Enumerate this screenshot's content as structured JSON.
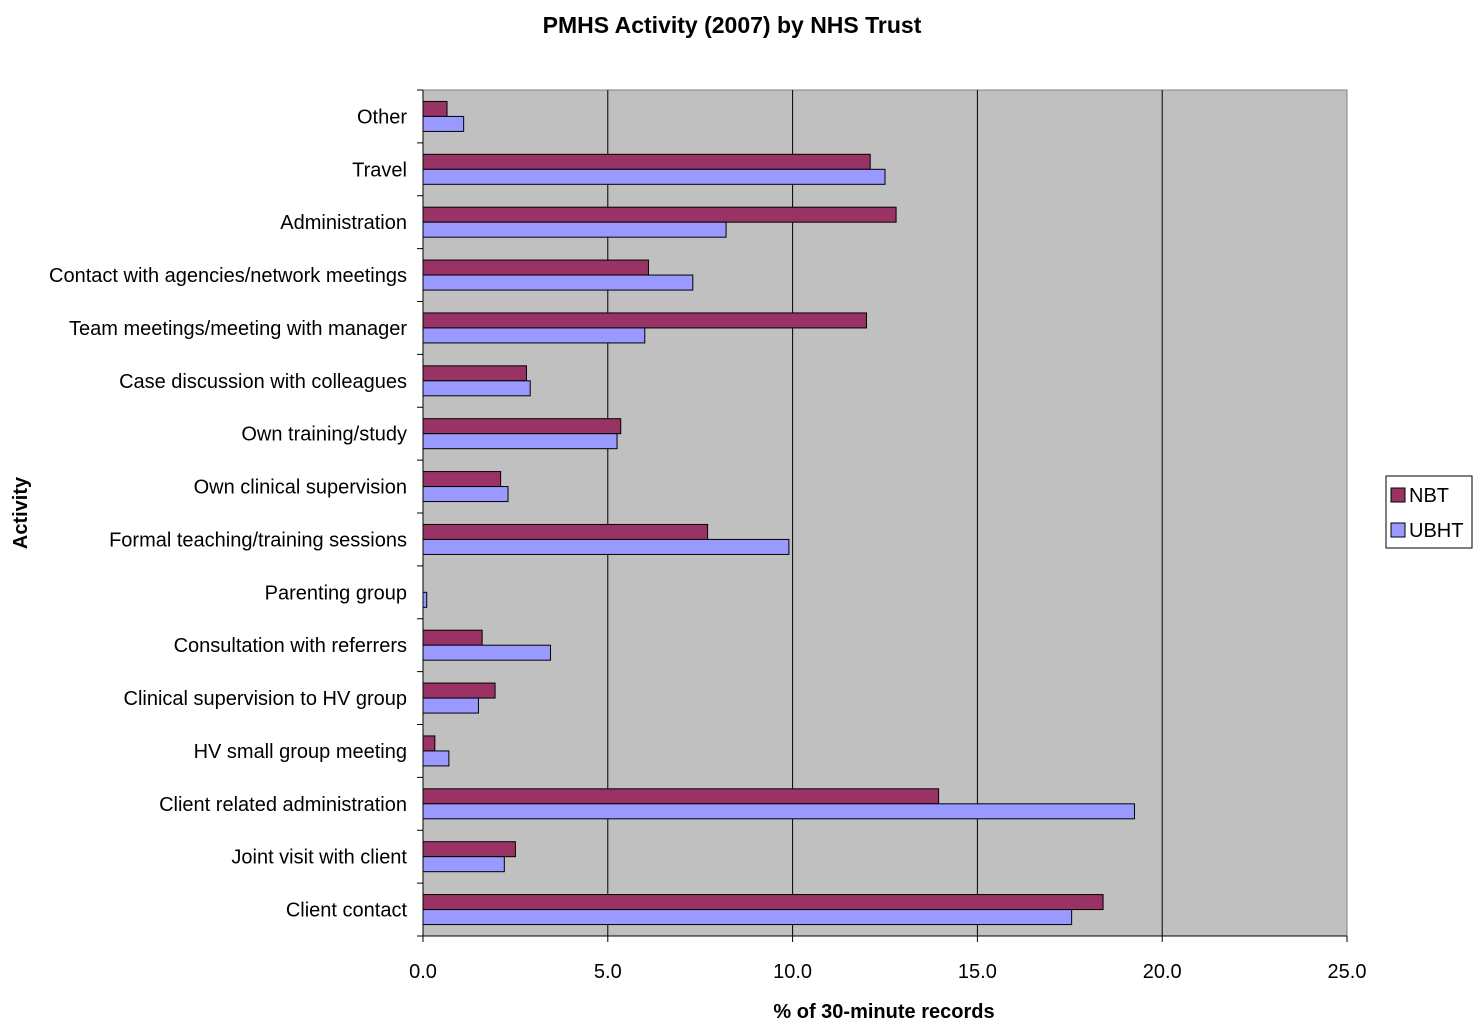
{
  "chart_data": {
    "type": "bar",
    "orientation": "horizontal",
    "title": "PMHS Activity (2007) by NHS Trust",
    "xlabel": "% of 30-minute records",
    "ylabel": "Activity",
    "xlim": [
      0,
      25
    ],
    "xticks": [
      "0.0",
      "5.0",
      "10.0",
      "15.0",
      "20.0",
      "25.0"
    ],
    "grid": "vertical",
    "legend_position": "right",
    "plot_background": "#c0c0c0",
    "categories": [
      "Other",
      "Travel",
      "Administration",
      "Contact with agencies/network meetings",
      "Team meetings/meeting with manager",
      "Case discussion with colleagues",
      "Own training/study",
      "Own clinical supervision",
      "Formal teaching/training sessions",
      "Parenting group",
      "Consultation with referrers",
      "Clinical supervision to HV group",
      "HV small group meeting",
      "Client related administration",
      "Joint visit with client",
      "Client contact"
    ],
    "series": [
      {
        "name": "NBT",
        "color": "#993366",
        "values": [
          0.65,
          12.1,
          12.8,
          6.1,
          12.0,
          2.8,
          5.35,
          2.1,
          7.7,
          0.0,
          1.6,
          1.95,
          0.32,
          13.95,
          2.5,
          18.4
        ]
      },
      {
        "name": "UBHT",
        "color": "#9999ff",
        "values": [
          1.1,
          12.5,
          8.2,
          7.3,
          6.0,
          2.9,
          5.25,
          2.3,
          9.9,
          0.1,
          3.45,
          1.5,
          0.7,
          19.25,
          2.2,
          17.55
        ]
      }
    ]
  }
}
